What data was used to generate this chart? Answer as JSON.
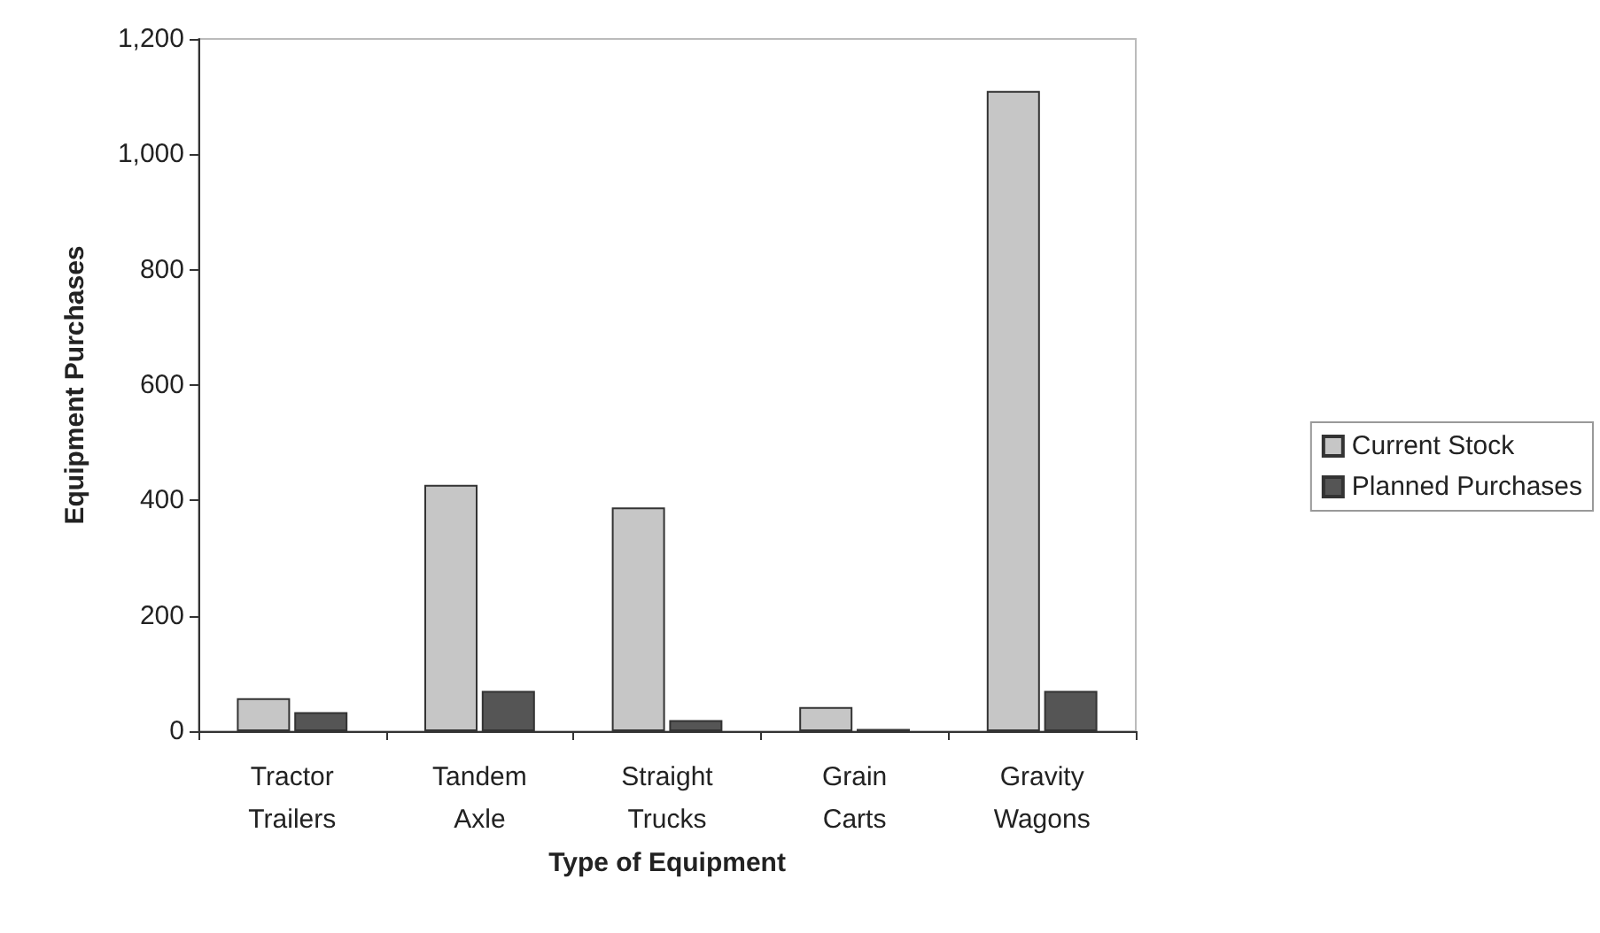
{
  "chart_data": {
    "type": "bar",
    "xlabel": "Type of Equipment",
    "ylabel": "Equipment Purchases",
    "categories": [
      "Tractor\nTrailers",
      "Tandem\nAxle",
      "Straight\nTrucks",
      "Grain\nCarts",
      "Gravity\nWagons"
    ],
    "series": [
      {
        "name": "Current Stock",
        "color": "#c6c6c6",
        "values": [
          57,
          427,
          388,
          42,
          1110
        ]
      },
      {
        "name": "Planned Purchases",
        "color": "#555555",
        "values": [
          33,
          70,
          19,
          4,
          70
        ]
      }
    ],
    "ylim": [
      0,
      1200
    ],
    "yticks": [
      {
        "value": 0,
        "label": "0"
      },
      {
        "value": 200,
        "label": "200"
      },
      {
        "value": 400,
        "label": "400"
      },
      {
        "value": 600,
        "label": "600"
      },
      {
        "value": 800,
        "label": "800"
      },
      {
        "value": 1000,
        "label": "1,000"
      },
      {
        "value": 1200,
        "label": "1,200"
      }
    ],
    "grid": false,
    "legend": "right"
  }
}
